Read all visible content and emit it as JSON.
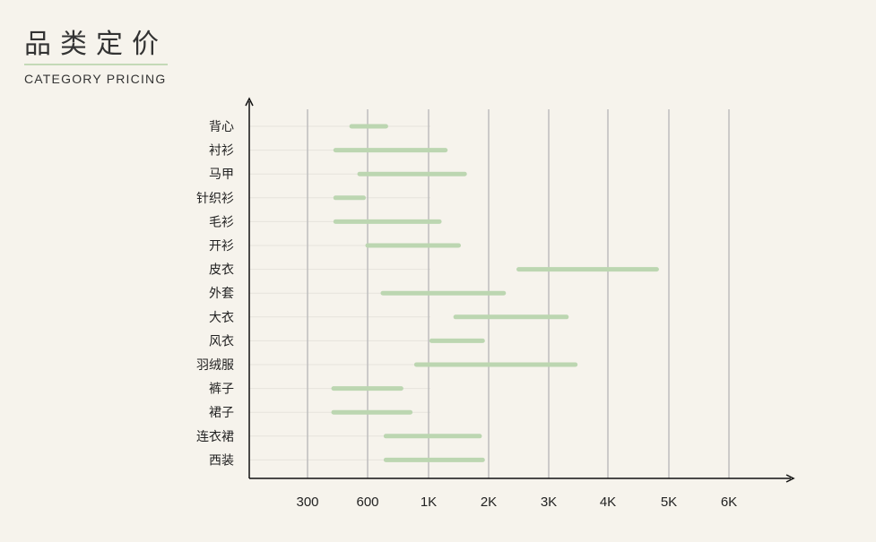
{
  "header": {
    "title": "品类定价",
    "subtitle": "CATEGORY PRICING"
  },
  "colors": {
    "background": "#f6f3ec",
    "bar": "#bcd6b1",
    "gridline": "#bdbdbd",
    "row_line": "#e6e3dc",
    "axis": "#111111"
  },
  "chart_data": {
    "type": "bar",
    "orientation": "horizontal-range",
    "title": "",
    "xlabel": "",
    "ylabel": "",
    "grid": true,
    "x_ticks": [
      "300",
      "600",
      "1K",
      "2K",
      "3K",
      "4K",
      "5K",
      "6K"
    ],
    "categories": [
      "背心",
      "衬衫",
      "马甲",
      "针织衫",
      "毛衫",
      "开衫",
      "皮衣",
      "外套",
      "大衣",
      "风衣",
      "羽绒服",
      "裤子",
      "裙子",
      "连衣裙",
      "西装"
    ],
    "series": [
      {
        "ranges": [
          [
            520,
            720
          ],
          [
            440,
            1280
          ],
          [
            560,
            1600
          ],
          [
            440,
            580
          ],
          [
            440,
            1180
          ],
          [
            600,
            1500
          ],
          [
            2500,
            4800
          ],
          [
            700,
            2250
          ],
          [
            1450,
            3300
          ],
          [
            1050,
            1900
          ],
          [
            920,
            3450
          ],
          [
            430,
            820
          ],
          [
            430,
            880
          ],
          [
            720,
            1850
          ],
          [
            720,
            1900
          ]
        ]
      }
    ]
  }
}
